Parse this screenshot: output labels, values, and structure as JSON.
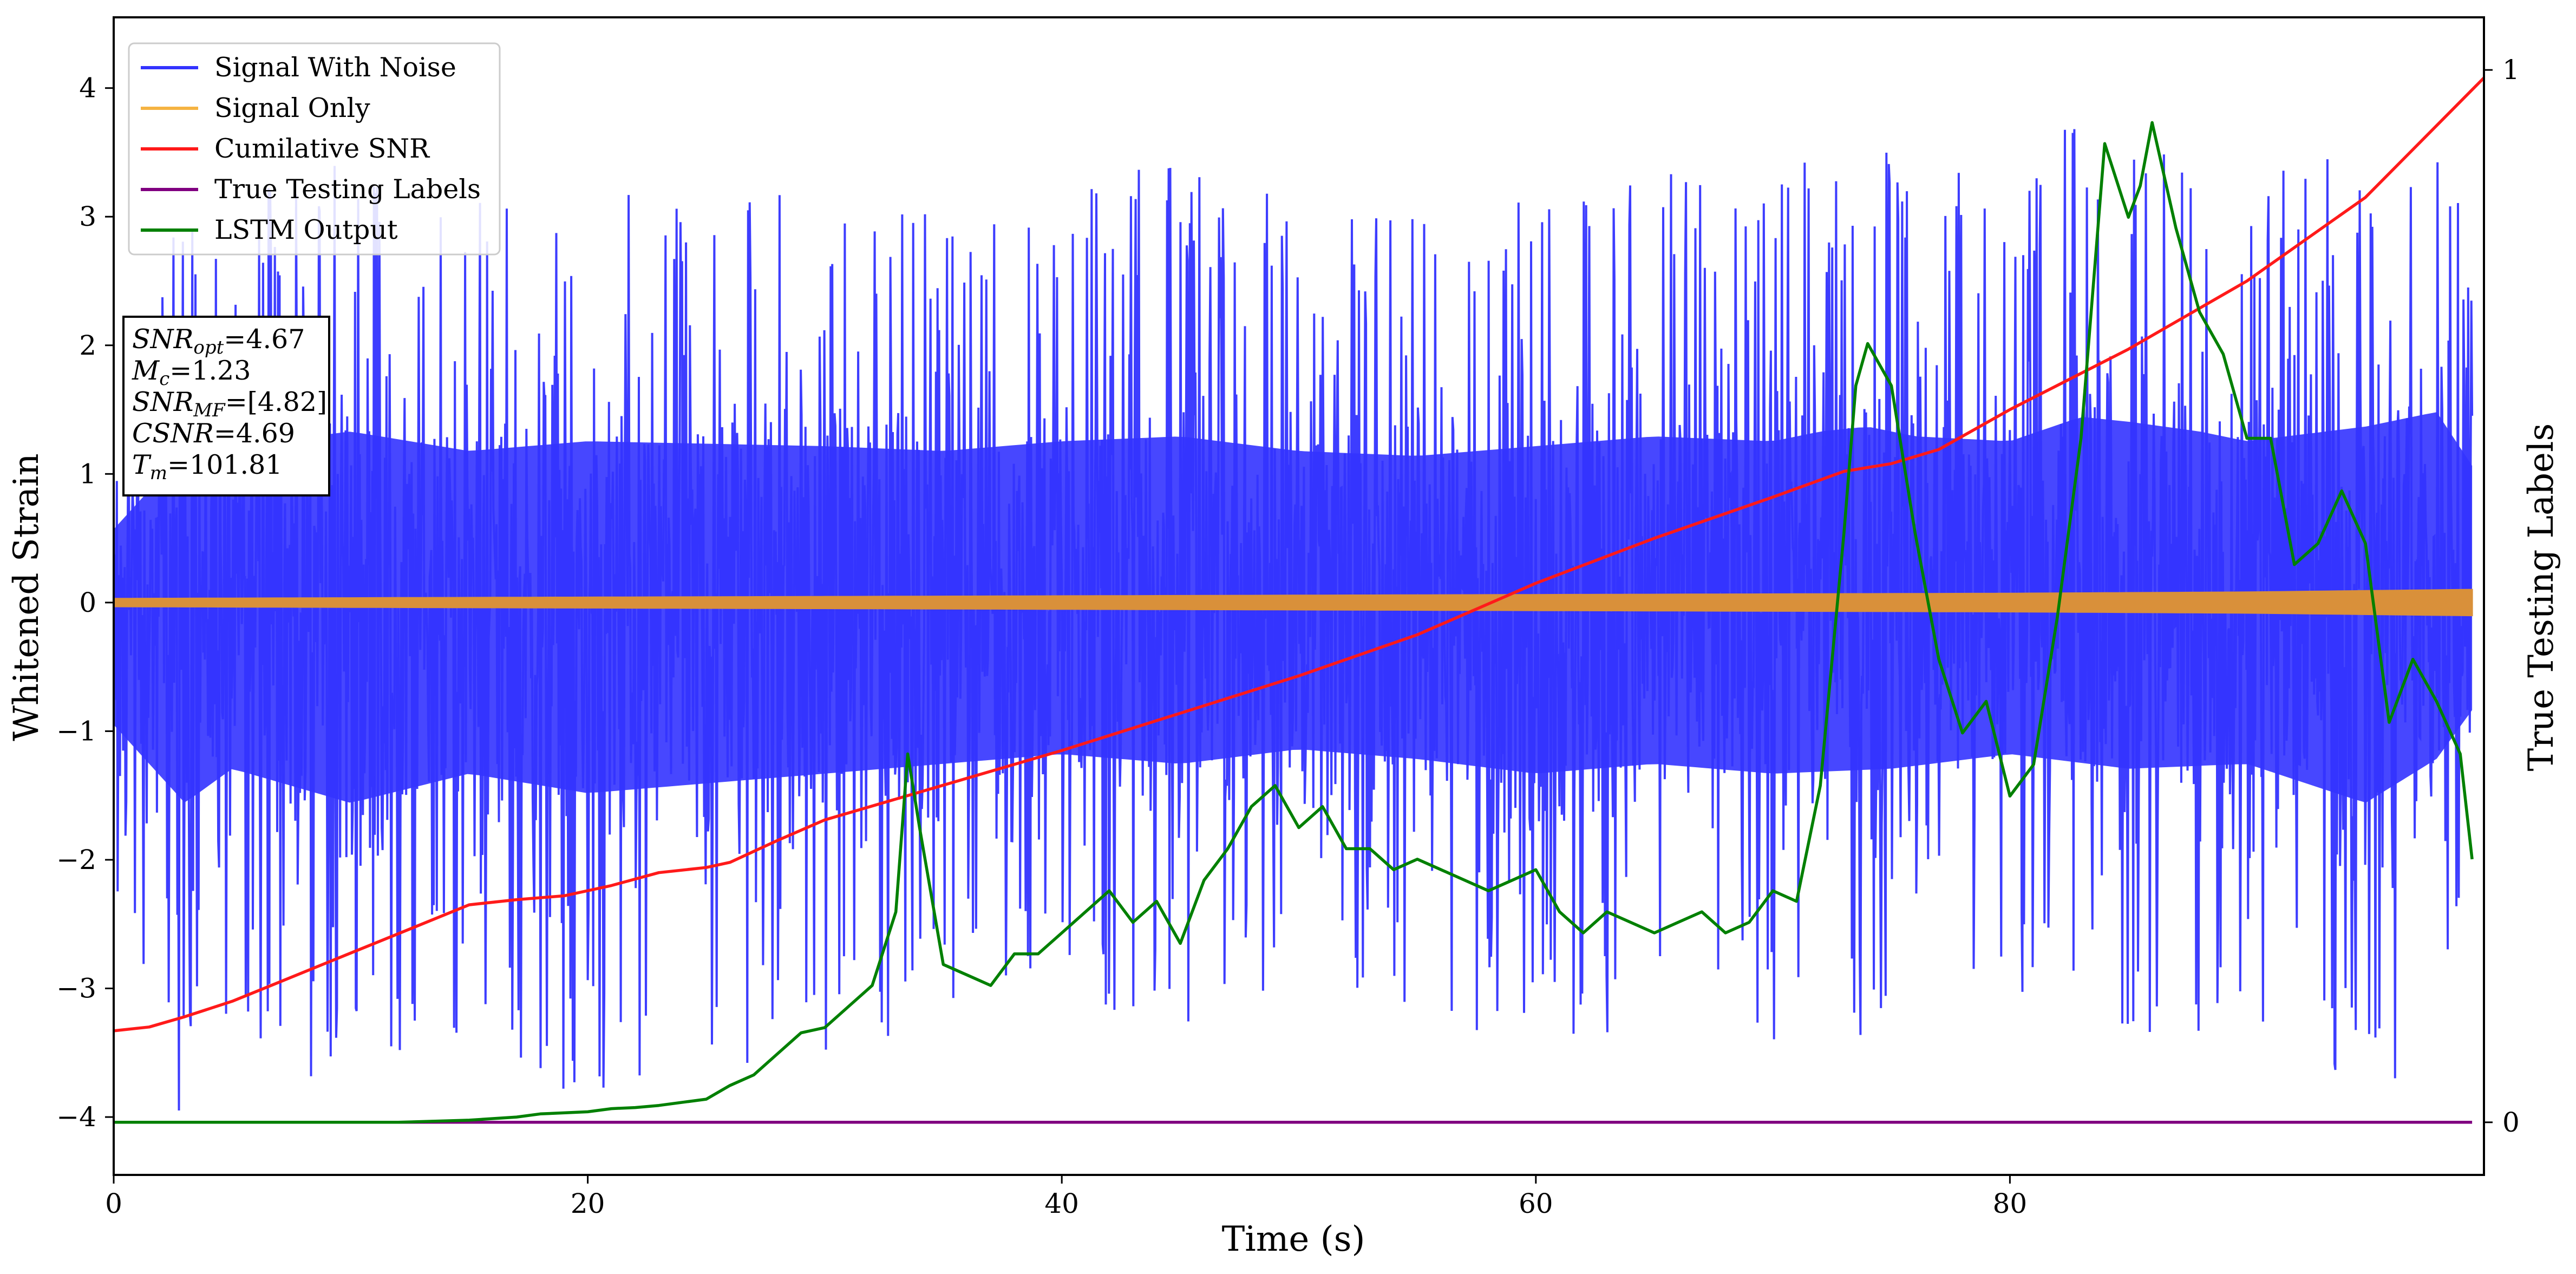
{
  "chart_data": {
    "type": "line",
    "title": "",
    "xlabel": "Time (s)",
    "ylabel_left": "Whitened Strain",
    "ylabel_right": "True Testing Labels",
    "xlim": [
      0,
      100
    ],
    "ylim_left": [
      -4.45,
      4.55
    ],
    "ylim_right": [
      -0.05,
      1.05
    ],
    "x_ticks": [
      0,
      20,
      40,
      60,
      80
    ],
    "y_left_ticks": [
      -4,
      -3,
      -2,
      -1,
      0,
      1,
      2,
      3,
      4
    ],
    "y_right_ticks": [
      0,
      1
    ],
    "grid": false,
    "legend_position": "upper-left",
    "legend": [
      {
        "label": "Signal With Noise",
        "color": "#3333ff"
      },
      {
        "label": "Signal Only",
        "color": "#f5b342"
      },
      {
        "label": "Cumilative SNR",
        "color": "#ff1a1a"
      },
      {
        "label": "True Testing Labels",
        "color": "#800080"
      },
      {
        "label": "LSTM Output",
        "color": "#008000"
      }
    ],
    "annotation": [
      {
        "sym": "SNR",
        "sub": "opt",
        "val": "=4.67"
      },
      {
        "sym": "M",
        "sub": "c",
        "val": "=1.23"
      },
      {
        "sym": "SNR",
        "sub": "MF",
        "val": "=[4.82]"
      },
      {
        "sym": "CSNR",
        "sub": "",
        "val": "=4.69"
      },
      {
        "sym": "T",
        "sub": "m",
        "val": "=101.81"
      }
    ],
    "series": [
      {
        "name": "Signal With Noise",
        "axis": "left",
        "color": "#3333ff",
        "style": "noise",
        "upper_envelope_x": [
          0,
          3,
          5,
          10,
          15,
          20,
          30,
          35,
          40,
          45,
          50,
          55,
          60,
          65,
          70,
          72,
          74,
          76,
          80,
          83,
          85,
          88,
          90,
          95,
          98,
          99.5
        ],
        "upper_envelope_y": [
          1.5,
          3.1,
          3.2,
          3.5,
          3.1,
          3.3,
          3.2,
          3.1,
          3.3,
          3.4,
          3.1,
          3.0,
          3.2,
          3.4,
          3.3,
          3.5,
          3.6,
          3.4,
          3.3,
          3.8,
          3.7,
          3.5,
          3.3,
          3.6,
          3.9,
          2.8
        ],
        "lower_envelope_x": [
          0,
          3,
          5,
          10,
          15,
          20,
          25,
          30,
          35,
          40,
          45,
          50,
          55,
          60,
          65,
          70,
          75,
          80,
          85,
          90,
          95,
          98,
          99.5
        ],
        "lower_envelope_y": [
          -2.5,
          -4.1,
          -3.4,
          -4.1,
          -3.5,
          -3.9,
          -3.7,
          -3.5,
          -3.3,
          -3.1,
          -3.3,
          -3.0,
          -3.2,
          -3.5,
          -3.3,
          -3.5,
          -3.4,
          -3.1,
          -3.4,
          -3.3,
          -4.1,
          -3.2,
          -2.2
        ]
      },
      {
        "name": "Signal Only",
        "axis": "left",
        "color": "#d9903a",
        "style": "band",
        "x": [
          0,
          10,
          20,
          30,
          40,
          50,
          60,
          70,
          80,
          90,
          99.5
        ],
        "amplitude": [
          0.03,
          0.035,
          0.04,
          0.045,
          0.05,
          0.055,
          0.06,
          0.065,
          0.07,
          0.08,
          0.1
        ]
      },
      {
        "name": "Cumilative SNR",
        "axis": "left",
        "color": "#ff1a1a",
        "x": [
          0,
          1.5,
          3,
          5,
          7,
          9,
          11,
          13,
          15,
          17,
          19,
          21,
          23,
          25,
          26,
          28,
          30,
          35,
          40,
          45,
          50,
          55,
          60,
          65,
          70,
          73,
          75,
          77,
          80,
          85,
          90,
          95,
          100
        ],
        "y": [
          -3.33,
          -3.3,
          -3.22,
          -3.1,
          -2.95,
          -2.8,
          -2.65,
          -2.5,
          -2.35,
          -2.31,
          -2.28,
          -2.2,
          -2.1,
          -2.06,
          -2.02,
          -1.85,
          -1.69,
          -1.42,
          -1.15,
          -0.86,
          -0.57,
          -0.25,
          0.15,
          0.5,
          0.82,
          1.02,
          1.08,
          1.19,
          1.5,
          1.97,
          2.5,
          3.15,
          4.08
        ]
      },
      {
        "name": "True Testing Labels",
        "axis": "right",
        "color": "#800080",
        "x": [
          0,
          99.5
        ],
        "y": [
          0,
          0
        ]
      },
      {
        "name": "LSTM Output",
        "axis": "right",
        "color": "#008000",
        "x": [
          0,
          12,
          15,
          17,
          18,
          20,
          21,
          22,
          23,
          25,
          26,
          27,
          28,
          29,
          30,
          31,
          32,
          33,
          33.5,
          34,
          35,
          36,
          37,
          38,
          39,
          40,
          41,
          42,
          43,
          44,
          45,
          46,
          47,
          48,
          49,
          50,
          51,
          52,
          53,
          54,
          55,
          56,
          57,
          58,
          59,
          60,
          61,
          62,
          63,
          64,
          65,
          66,
          67,
          68,
          69,
          70,
          71,
          72,
          73,
          73.5,
          74,
          75,
          76,
          77,
          78,
          79,
          80,
          81,
          82,
          83,
          84,
          85,
          85.5,
          86,
          87,
          88,
          89,
          90,
          91,
          92,
          93,
          94,
          95,
          96,
          97,
          98,
          99,
          99.5
        ],
        "y": [
          0,
          0,
          0.002,
          0.005,
          0.008,
          0.01,
          0.013,
          0.014,
          0.016,
          0.022,
          0.035,
          0.045,
          0.065,
          0.085,
          0.09,
          0.11,
          0.13,
          0.2,
          0.35,
          0.28,
          0.15,
          0.14,
          0.13,
          0.16,
          0.16,
          0.18,
          0.2,
          0.22,
          0.19,
          0.21,
          0.17,
          0.23,
          0.26,
          0.3,
          0.32,
          0.28,
          0.3,
          0.26,
          0.26,
          0.24,
          0.25,
          0.24,
          0.23,
          0.22,
          0.23,
          0.24,
          0.2,
          0.18,
          0.2,
          0.19,
          0.18,
          0.19,
          0.2,
          0.18,
          0.19,
          0.22,
          0.21,
          0.32,
          0.56,
          0.7,
          0.74,
          0.7,
          0.56,
          0.44,
          0.37,
          0.4,
          0.31,
          0.34,
          0.48,
          0.65,
          0.93,
          0.86,
          0.89,
          0.95,
          0.85,
          0.77,
          0.73,
          0.65,
          0.65,
          0.53,
          0.55,
          0.6,
          0.55,
          0.38,
          0.44,
          0.4,
          0.35,
          0.25
        ]
      }
    ]
  }
}
